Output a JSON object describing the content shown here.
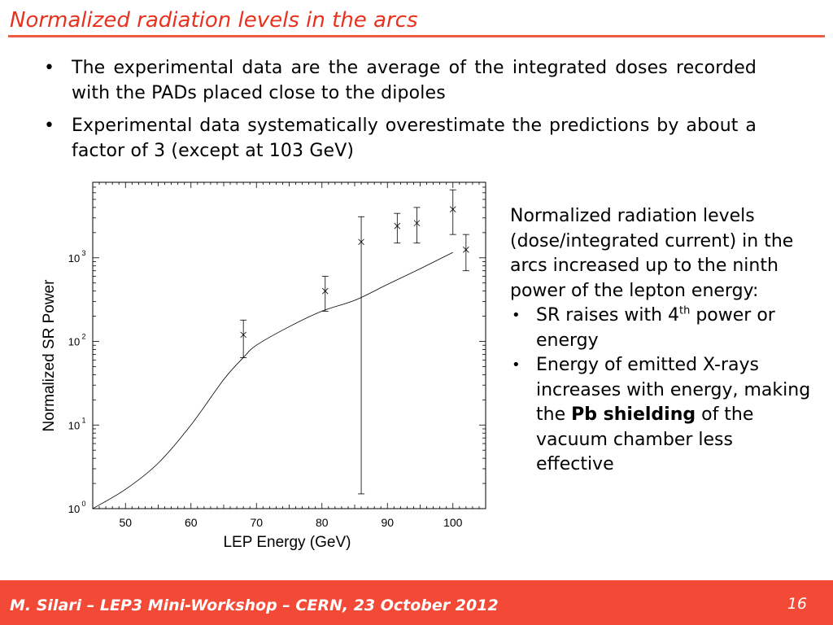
{
  "slide": {
    "title": "Normalized radiation levels in the arcs",
    "bullets": [
      "The experimental data are the average of the integrated doses recorded with the PADs placed close to the dipoles",
      "Experimental data systematically overestimate the predictions by about a factor of 3 (except at 103 GeV)"
    ],
    "bullet_glyph": "•"
  },
  "side": {
    "intro": "Normalized radiation levels (dose/integrated current) in the arcs increased up to the ninth power of the lepton energy:",
    "item1_pre": "SR raises with 4",
    "item1_sup": "th",
    "item1_post": " power or energy",
    "item2_pre": "Energy of emitted X-rays increases with energy, making the ",
    "item2_bold": "Pb shielding",
    "item2_post": " of the vacuum chamber less effective"
  },
  "footer": {
    "text": "M. Silari – LEP3 Mini-Workshop – CERN, 23 October 2012",
    "page": "16"
  },
  "colors": {
    "accent": "#e8311f",
    "footer_bg": "#f24a37",
    "rule": "#f05a45"
  },
  "chart_data": {
    "type": "scatter",
    "title": "",
    "xlabel": "LEP Energy (GeV)",
    "ylabel": "Normalized SR Power",
    "xlim": [
      45,
      105
    ],
    "ylim": [
      1,
      8000
    ],
    "y_scale": "log",
    "x_ticks": [
      "50",
      "60",
      "70",
      "80",
      "90",
      "100"
    ],
    "y_tick_base": "10",
    "y_tick_exponents": [
      "0",
      "1",
      "2",
      "3"
    ],
    "grid": false,
    "series": [
      {
        "kind": "line",
        "x": [
          45,
          50,
          55,
          60,
          65,
          68,
          70,
          75,
          80,
          85,
          90,
          95,
          100
        ],
        "y": [
          1,
          1.7,
          3.5,
          10,
          35,
          64,
          90,
          150,
          230,
          310,
          480,
          740,
          1160
        ]
      },
      {
        "kind": "points",
        "x": [
          68,
          80.5,
          86,
          91.5,
          94.5,
          100,
          102
        ],
        "y": [
          120,
          400,
          1550,
          2400,
          2600,
          3800,
          1250
        ],
        "y_err_low": [
          64,
          230,
          1.5,
          1500,
          1500,
          1900,
          700
        ],
        "y_err_high": [
          180,
          600,
          3100,
          3400,
          4000,
          6500,
          1900
        ]
      }
    ]
  }
}
